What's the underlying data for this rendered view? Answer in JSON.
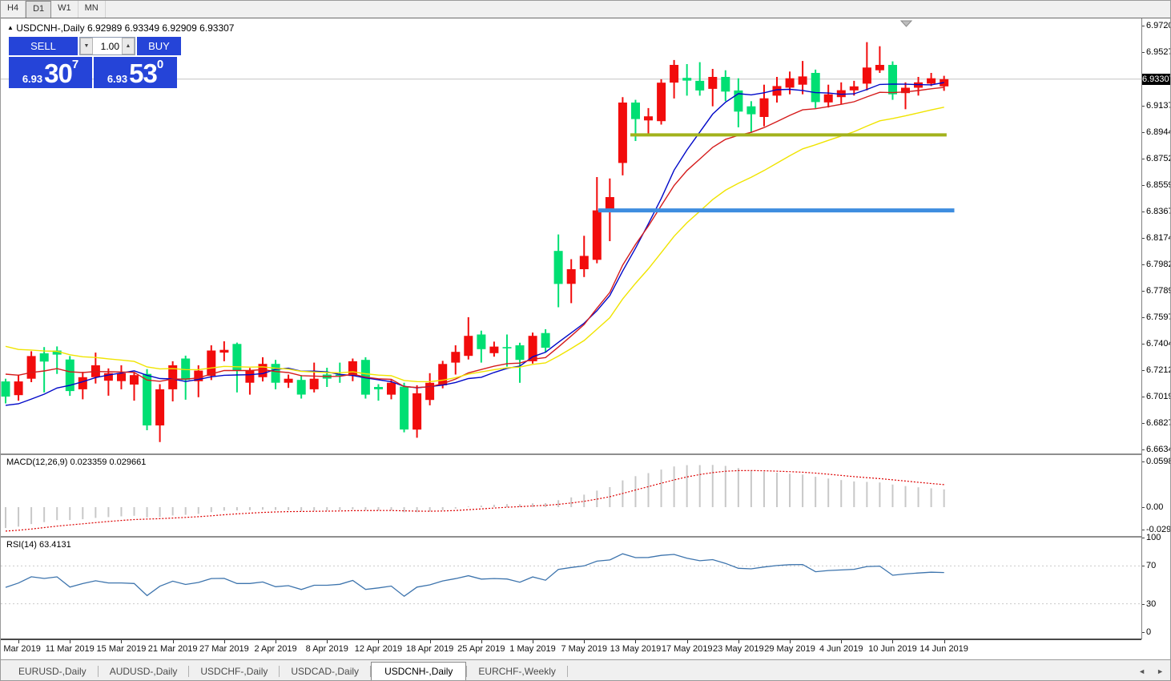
{
  "toolbar": {
    "timeframes": [
      "H4",
      "D1",
      "W1",
      "MN"
    ],
    "active": "D1"
  },
  "title": {
    "symbol": "USDCNH-,Daily",
    "quotes": "6.92989 6.93349 6.92909 6.93307"
  },
  "trade_panel": {
    "sell_label": "SELL",
    "buy_label": "BUY",
    "volume": "1.00",
    "sell_price": {
      "small": "6.93",
      "big": "30",
      "sup": "7"
    },
    "buy_price": {
      "small": "6.93",
      "big": "53",
      "sup": "0"
    },
    "accent_blue": "#2544d8"
  },
  "price_scale": {
    "ticks": [
      "6.97200",
      "6.95275",
      "6.91370",
      "6.89445",
      "6.87520",
      "6.85595",
      "6.83670",
      "6.81745",
      "6.79820",
      "6.77895",
      "6.75970",
      "6.74045",
      "6.72120",
      "6.70195",
      "6.68270",
      "6.66345"
    ],
    "current_price": "6.93307"
  },
  "macd_panel": {
    "name": "MACD(12,26,9)",
    "value": "0.023359",
    "signal_value": "0.029661",
    "scale": [
      "0.0598",
      "0.00",
      "-0.029049"
    ]
  },
  "rsi_panel": {
    "name": "RSI(14)",
    "value": "63.4131",
    "scale": [
      "100",
      "70",
      "30",
      "0"
    ]
  },
  "tabs": {
    "items": [
      "EURUSD-,Daily",
      "AUDUSD-,Daily",
      "USDCHF-,Daily",
      "USDCAD-,Daily",
      "USDCNH-,Daily",
      "EURCHF-,Weekly"
    ],
    "active": "USDCNH-,Daily"
  },
  "chart_data": {
    "type": "candlestick",
    "symbol": "USDCNH-",
    "timeframe": "Daily",
    "color_convention": "red = bullish (close>=open), green = bearish",
    "bull_color": "#f20c0c",
    "bear_color": "#00df73",
    "current_price": 6.93307,
    "price_range_visible": [
      6.66345,
      6.972
    ],
    "ohlc": [
      [
        6.713,
        6.715,
        6.697,
        6.702
      ],
      [
        6.703,
        6.718,
        6.699,
        6.713
      ],
      [
        6.715,
        6.735,
        6.7125,
        6.7315
      ],
      [
        6.7335,
        6.738,
        6.705,
        6.7275
      ],
      [
        6.7355,
        6.7385,
        6.7185,
        6.7325
      ],
      [
        6.729,
        6.7315,
        6.7025,
        6.706
      ],
      [
        6.7073,
        6.72,
        6.7,
        6.7161
      ],
      [
        6.7161,
        6.734,
        6.7115,
        6.7248
      ],
      [
        6.7135,
        6.7225,
        6.7026,
        6.719
      ],
      [
        6.7132,
        6.7248,
        6.7073,
        6.719
      ],
      [
        6.7107,
        6.72,
        6.699,
        6.7176
      ],
      [
        6.7185,
        6.722,
        6.6775,
        6.681
      ],
      [
        6.681,
        6.711,
        6.6689,
        6.7073
      ],
      [
        6.7073,
        6.7277,
        6.6985,
        6.7248
      ],
      [
        6.7297,
        6.7318,
        6.6997,
        6.7141
      ],
      [
        6.7132,
        6.7248,
        6.7015,
        6.7209
      ],
      [
        6.717,
        6.7393,
        6.714,
        6.7355
      ],
      [
        6.734,
        6.7422,
        6.7277,
        6.736
      ],
      [
        6.7403,
        6.7413,
        6.705,
        6.7209
      ],
      [
        6.7121,
        6.7228,
        6.7034,
        6.7209
      ],
      [
        6.7161,
        6.7306,
        6.713,
        6.7258
      ],
      [
        6.7258,
        6.7287,
        6.7073,
        6.7121
      ],
      [
        6.7121,
        6.718,
        6.7083,
        6.715
      ],
      [
        6.7141,
        6.7176,
        6.7005,
        6.7034
      ],
      [
        6.7073,
        6.7267,
        6.705,
        6.715
      ],
      [
        6.718,
        6.723,
        6.709,
        6.715
      ],
      [
        6.718,
        6.7267,
        6.712,
        6.7175
      ],
      [
        6.717,
        6.7297,
        6.7132,
        6.7277
      ],
      [
        6.7287,
        6.7306,
        6.7005,
        6.7034
      ],
      [
        6.709,
        6.711,
        6.699,
        6.7073
      ],
      [
        6.7034,
        6.714,
        6.7,
        6.7121
      ],
      [
        6.7092,
        6.712,
        6.676,
        6.678
      ],
      [
        6.678,
        6.7102,
        6.672,
        6.7044
      ],
      [
        6.6995,
        6.719,
        6.6956,
        6.712
      ],
      [
        6.7102,
        6.728,
        6.708,
        6.7257
      ],
      [
        6.7267,
        6.7393,
        6.718,
        6.7345
      ],
      [
        6.7316,
        6.7598,
        6.729,
        6.7462
      ],
      [
        6.7472,
        6.75,
        6.7267,
        6.7365
      ],
      [
        6.7336,
        6.742,
        6.731,
        6.7384
      ],
      [
        6.738,
        6.7472,
        6.7238,
        6.7372
      ],
      [
        6.7393,
        6.7412,
        6.712,
        6.7287
      ],
      [
        6.7277,
        6.7486,
        6.726,
        6.7462
      ],
      [
        6.7482,
        6.751,
        6.734,
        6.7375
      ],
      [
        6.808,
        6.82,
        6.767,
        6.784
      ],
      [
        6.784,
        6.802,
        6.77,
        6.7947
      ],
      [
        6.7947,
        6.819,
        6.789,
        6.8044
      ],
      [
        6.8015,
        6.8618,
        6.799,
        6.8375
      ],
      [
        6.8385,
        6.8608,
        6.8151,
        6.8472
      ],
      [
        6.872,
        6.92,
        6.863,
        6.916
      ],
      [
        6.916,
        6.918,
        6.888,
        6.904
      ],
      [
        6.903,
        6.912,
        6.893,
        6.906
      ],
      [
        6.9025,
        6.933,
        6.9,
        6.9305
      ],
      [
        6.9305,
        6.947,
        6.919,
        6.9434
      ],
      [
        6.934,
        6.944,
        6.921,
        6.932
      ],
      [
        6.9318,
        6.9454,
        6.921,
        6.9248
      ],
      [
        6.926,
        6.9405,
        6.9133,
        6.9347
      ],
      [
        6.9347,
        6.9395,
        6.917,
        6.924
      ],
      [
        6.9248,
        6.9337,
        6.898,
        6.9094
      ],
      [
        6.9133,
        6.917,
        6.894,
        6.9075
      ],
      [
        6.9055,
        6.929,
        6.8987,
        6.9191
      ],
      [
        6.921,
        6.9347,
        6.916,
        6.928
      ],
      [
        6.9269,
        6.9386,
        6.922,
        6.9337
      ],
      [
        6.929,
        6.9463,
        6.922,
        6.935
      ],
      [
        6.9376,
        6.94,
        6.912,
        6.9164
      ],
      [
        6.9161,
        6.929,
        6.9124,
        6.922
      ],
      [
        6.92,
        6.9307,
        6.915,
        6.925
      ],
      [
        6.9249,
        6.9318,
        6.9211,
        6.9278
      ],
      [
        6.9298,
        6.96,
        6.9249,
        6.9415
      ],
      [
        6.9395,
        6.957,
        6.9376,
        6.9434
      ],
      [
        6.9434,
        6.946,
        6.918,
        6.922
      ],
      [
        6.9229,
        6.9307,
        6.9112,
        6.9268
      ],
      [
        6.9268,
        6.9347,
        6.9211,
        6.9307
      ],
      [
        6.9298,
        6.9376,
        6.928,
        6.9337
      ],
      [
        6.9278,
        6.9355,
        6.9245,
        6.93307
      ]
    ],
    "date_labels": {
      "indices": [
        1,
        5,
        9,
        13,
        17,
        21,
        25,
        29,
        33,
        37,
        41,
        45,
        49,
        53,
        57,
        61,
        65,
        69,
        73
      ],
      "labels": [
        "5 Mar 2019",
        "11 Mar 2019",
        "15 Mar 2019",
        "21 Mar 2019",
        "27 Mar 2019",
        "2 Apr 2019",
        "8 Apr 2019",
        "12 Apr 2019",
        "18 Apr 2019",
        "25 Apr 2019",
        "1 May 2019",
        "7 May 2019",
        "13 May 2019",
        "17 May 2019",
        "23 May 2019",
        "29 May 2019",
        "4 Jun 2019",
        "10 Jun 2019",
        "14 Jun 2019"
      ]
    },
    "moving_averages": [
      {
        "name": "fast",
        "method": "sma",
        "period": 10,
        "color": "#0008c8",
        "seed": 6.699,
        "prior_closes": [
          6.708,
          6.702,
          6.697,
          6.692,
          6.688,
          6.686,
          6.69,
          6.695,
          6.7,
          6.7045
        ]
      },
      {
        "name": "medium",
        "method": "ema",
        "period": 13,
        "color": "#d51c1c",
        "seed": 6.721
      },
      {
        "name": "slow",
        "method": "ema",
        "period": 22,
        "color": "#f0e400",
        "seed": 6.742
      }
    ],
    "trendlines": [
      {
        "name": "resistance-olive",
        "price": 6.8925,
        "from_index": 48.6,
        "to_index": 73.2,
        "color": "#a2b21c",
        "width": 4
      },
      {
        "name": "support-blue",
        "price": 6.8375,
        "from_index": 46.1,
        "to_index": 73.8,
        "color": "#3e8ddf",
        "width": 5
      }
    ],
    "macd": {
      "fast": 12,
      "slow": 26,
      "signal": 9,
      "last_value": 0.023359,
      "last_signal": 0.029661,
      "scale_max": 0.0598,
      "scale_min": -0.029049,
      "histogram_color": "#c8c8c8",
      "signal_color": "#dd0000",
      "seeds": {
        "ema12": 6.716,
        "ema26": 6.7445,
        "signal": -0.0325
      }
    },
    "rsi": {
      "period": 14,
      "last_value": 63.4131,
      "levels": [
        70,
        30
      ],
      "color": "#3d74ad",
      "seeds": {
        "avg_gain": 0.0045,
        "avg_loss": 0.005
      }
    }
  }
}
